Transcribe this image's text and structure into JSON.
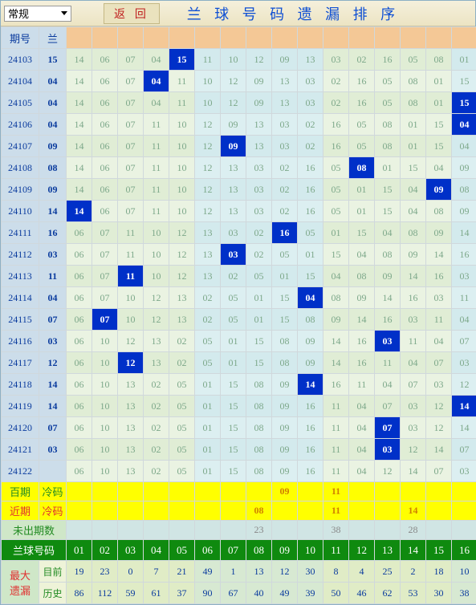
{
  "topbar": {
    "dropdown_label": "常规",
    "return_label": "返 回",
    "title": "兰 球 号 码 遗 漏 排 序"
  },
  "header": {
    "period": "期号",
    "lan": "兰",
    "cols": [
      "",
      "",
      "",
      "",
      "",
      "",
      "",
      "",
      "",
      "",
      "",
      "",
      "",
      "",
      "",
      ""
    ]
  },
  "altGroups": [
    0,
    0,
    0,
    0,
    0,
    1,
    1,
    1,
    1,
    1,
    0,
    0,
    0,
    0,
    0,
    1
  ],
  "rows": [
    {
      "period": "24103",
      "lan": "15",
      "cells": [
        "14",
        "06",
        "07",
        "04",
        "15",
        "11",
        "10",
        "12",
        "09",
        "13",
        "03",
        "02",
        "16",
        "05",
        "08",
        "01"
      ],
      "hit": 4
    },
    {
      "period": "24104",
      "lan": "04",
      "cells": [
        "14",
        "06",
        "07",
        "04",
        "11",
        "10",
        "12",
        "09",
        "13",
        "03",
        "02",
        "16",
        "05",
        "08",
        "01",
        "15"
      ],
      "hit": 3
    },
    {
      "period": "24105",
      "lan": "04",
      "cells": [
        "14",
        "06",
        "07",
        "04",
        "11",
        "10",
        "12",
        "09",
        "13",
        "03",
        "02",
        "16",
        "05",
        "08",
        "01",
        "15",
        "04"
      ],
      "hit": 15,
      "extra": true,
      "prepend": [
        "14",
        "06",
        "07",
        "04",
        "11",
        "10",
        "12",
        "09",
        "13",
        "03",
        "02",
        "16",
        "05",
        "08",
        "01",
        "15"
      ]
    },
    {
      "period": "24106",
      "lan": "04",
      "cells": [
        "14",
        "06",
        "07",
        "11",
        "10",
        "12",
        "09",
        "13",
        "03",
        "02",
        "16",
        "05",
        "08",
        "01",
        "15",
        "04"
      ],
      "hit": 15
    },
    {
      "period": "24107",
      "lan": "09",
      "cells": [
        "14",
        "06",
        "07",
        "11",
        "10",
        "12",
        "09",
        "13",
        "03",
        "02",
        "16",
        "05",
        "08",
        "01",
        "15",
        "04"
      ],
      "hit": 6
    },
    {
      "period": "24108",
      "lan": "08",
      "cells": [
        "14",
        "06",
        "07",
        "11",
        "10",
        "12",
        "13",
        "03",
        "02",
        "16",
        "05",
        "08",
        "01",
        "15",
        "04",
        "09"
      ],
      "hit": 11
    },
    {
      "period": "24109",
      "lan": "09",
      "cells": [
        "14",
        "06",
        "07",
        "11",
        "10",
        "12",
        "13",
        "03",
        "02",
        "16",
        "05",
        "01",
        "15",
        "04",
        "09",
        "08"
      ],
      "hit": 14
    },
    {
      "period": "24110",
      "lan": "14",
      "cells": [
        "14",
        "06",
        "07",
        "11",
        "10",
        "12",
        "13",
        "03",
        "02",
        "16",
        "05",
        "01",
        "15",
        "04",
        "08",
        "09"
      ],
      "hit": 0
    },
    {
      "period": "24111",
      "lan": "16",
      "cells": [
        "06",
        "07",
        "11",
        "10",
        "12",
        "13",
        "03",
        "02",
        "16",
        "05",
        "01",
        "15",
        "04",
        "08",
        "09",
        "14"
      ],
      "hit": 8
    },
    {
      "period": "24112",
      "lan": "03",
      "cells": [
        "06",
        "07",
        "11",
        "10",
        "12",
        "13",
        "03",
        "02",
        "05",
        "01",
        "15",
        "04",
        "08",
        "09",
        "14",
        "16"
      ],
      "hit": 6
    },
    {
      "period": "24113",
      "lan": "11",
      "cells": [
        "06",
        "07",
        "11",
        "10",
        "12",
        "13",
        "02",
        "05",
        "01",
        "15",
        "04",
        "08",
        "09",
        "14",
        "16",
        "03"
      ],
      "hit": 2
    },
    {
      "period": "24114",
      "lan": "04",
      "cells": [
        "06",
        "07",
        "10",
        "12",
        "13",
        "02",
        "05",
        "01",
        "15",
        "04",
        "08",
        "09",
        "14",
        "16",
        "03",
        "11"
      ],
      "hit": 9
    },
    {
      "period": "24115",
      "lan": "07",
      "cells": [
        "06",
        "07",
        "10",
        "12",
        "13",
        "02",
        "05",
        "01",
        "15",
        "08",
        "09",
        "14",
        "16",
        "03",
        "11",
        "04"
      ],
      "hit": 1
    },
    {
      "period": "24116",
      "lan": "03",
      "cells": [
        "06",
        "10",
        "12",
        "13",
        "02",
        "05",
        "01",
        "15",
        "08",
        "09",
        "14",
        "16",
        "03",
        "11",
        "04",
        "07"
      ],
      "hit": 12
    },
    {
      "period": "24117",
      "lan": "12",
      "cells": [
        "06",
        "10",
        "12",
        "13",
        "02",
        "05",
        "01",
        "15",
        "08",
        "09",
        "14",
        "16",
        "11",
        "04",
        "07",
        "03"
      ],
      "hit": 2
    },
    {
      "period": "24118",
      "lan": "14",
      "cells": [
        "06",
        "10",
        "13",
        "02",
        "05",
        "01",
        "15",
        "08",
        "09",
        "14",
        "16",
        "11",
        "04",
        "07",
        "03",
        "12"
      ],
      "hit": 9
    },
    {
      "period": "24119",
      "lan": "14",
      "cells": [
        "06",
        "10",
        "13",
        "02",
        "05",
        "01",
        "15",
        "08",
        "09",
        "16",
        "11",
        "04",
        "07",
        "03",
        "12",
        "14"
      ],
      "hit": 15
    },
    {
      "period": "24120",
      "lan": "07",
      "cells": [
        "06",
        "10",
        "13",
        "02",
        "05",
        "01",
        "15",
        "08",
        "09",
        "16",
        "11",
        "04",
        "07",
        "03",
        "12",
        "14"
      ],
      "hit": 12
    },
    {
      "period": "24121",
      "lan": "03",
      "cells": [
        "06",
        "10",
        "13",
        "02",
        "05",
        "01",
        "15",
        "08",
        "09",
        "16",
        "11",
        "04",
        "03",
        "12",
        "14",
        "07"
      ],
      "hit": 12
    },
    {
      "period": "24122",
      "lan": "",
      "cells": [
        "06",
        "10",
        "13",
        "02",
        "05",
        "01",
        "15",
        "08",
        "09",
        "16",
        "11",
        "04",
        "12",
        "14",
        "07",
        "03"
      ],
      "hit": -1
    }
  ],
  "cold": {
    "label1_a": "百期",
    "label1_b": "冷码",
    "vals1": {
      "09": 8,
      "11": 10
    },
    "label2_a": "近期",
    "label2_b": "冷码",
    "vals2": {
      "08": 7,
      "11": 10,
      "14": 13
    }
  },
  "pending": {
    "label": "未出期数",
    "vals": {
      "23": 7,
      "38": 10,
      "28": 13
    }
  },
  "greenHeader": {
    "label": "兰球号码",
    "nums": [
      "01",
      "02",
      "03",
      "04",
      "05",
      "06",
      "07",
      "08",
      "09",
      "10",
      "11",
      "12",
      "13",
      "14",
      "15",
      "16"
    ]
  },
  "stats": {
    "rowLabel": "最大\n遗漏",
    "sub1": "目前",
    "vals1": [
      "19",
      "23",
      "0",
      "7",
      "21",
      "49",
      "1",
      "13",
      "12",
      "30",
      "8",
      "4",
      "25",
      "2",
      "18",
      "10"
    ],
    "sub2": "历史",
    "vals2": [
      "86",
      "112",
      "59",
      "61",
      "37",
      "90",
      "67",
      "40",
      "49",
      "39",
      "50",
      "46",
      "62",
      "53",
      "30",
      "38"
    ]
  },
  "colors": {
    "hit_bg": "#0030c8",
    "hit_fg": "#ffffff",
    "header_orange": "#f4c896",
    "header_blue": "#ccddea",
    "cell_green1": "#e0edd5",
    "cell_green2": "#eaf3e2",
    "cell_teal1": "#d3eaed",
    "cell_teal2": "#dceff1",
    "yellow": "#ffff00",
    "green_hdr": "#0f8a0f"
  }
}
